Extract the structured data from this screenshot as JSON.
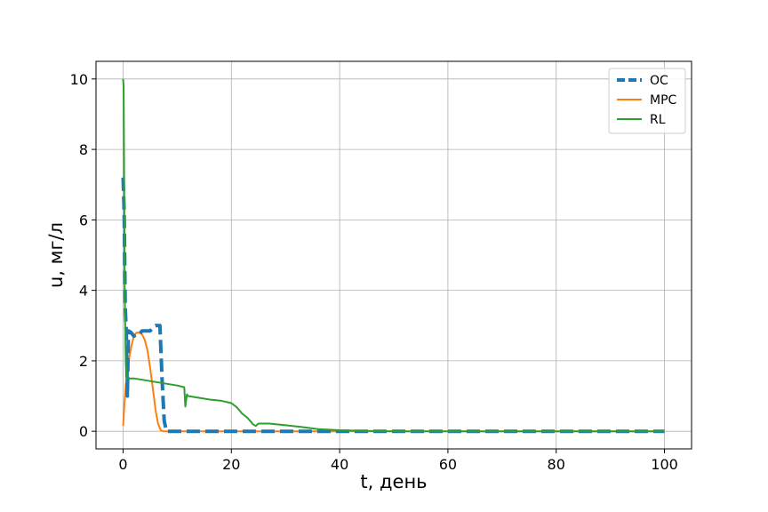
{
  "chart_data": {
    "type": "line",
    "title": "",
    "xlabel": "t, день",
    "ylabel": "u, мг/л",
    "xlim": [
      -5,
      105
    ],
    "ylim": [
      -0.5,
      10.5
    ],
    "xticks": [
      0,
      20,
      40,
      60,
      80,
      100
    ],
    "yticks": [
      0,
      2,
      4,
      6,
      8,
      10
    ],
    "grid": true,
    "legend_position": "top-right",
    "series": [
      {
        "name": "OC",
        "color": "#1f77b4",
        "style": "dashed",
        "x": [
          0,
          0.2,
          0.4,
          0.6,
          0.8,
          1.0,
          1.5,
          2,
          2.5,
          3,
          3.5,
          4,
          5,
          6,
          6.8,
          7.2,
          7.6,
          8,
          100
        ],
        "y": [
          7.2,
          6.2,
          3.5,
          2.8,
          1.0,
          2.85,
          2.8,
          2.7,
          2.75,
          2.75,
          2.85,
          2.85,
          2.85,
          3.0,
          3.0,
          1.5,
          0.3,
          0.0,
          0.0
        ]
      },
      {
        "name": "MPC",
        "color": "#ff7f0e",
        "style": "solid",
        "x": [
          0,
          0.3,
          0.6,
          1,
          1.5,
          2,
          2.5,
          3,
          3.5,
          4,
          4.5,
          5,
          5.5,
          6,
          6.5,
          7,
          7.5,
          100
        ],
        "y": [
          0.15,
          0.9,
          1.5,
          1.95,
          2.4,
          2.7,
          2.8,
          2.8,
          2.75,
          2.6,
          2.3,
          1.8,
          1.2,
          0.6,
          0.2,
          0.02,
          0.0,
          0.0
        ]
      },
      {
        "name": "RL",
        "color": "#2ca02c",
        "style": "solid",
        "x": [
          0,
          0.1,
          0.2,
          0.3,
          0.5,
          0.8,
          1,
          2,
          4,
          6,
          8,
          10,
          11.3,
          11.5,
          11.8,
          12.0,
          14,
          16,
          18,
          20,
          21,
          22,
          23,
          24,
          24.5,
          25,
          27,
          30,
          33,
          36,
          40,
          45,
          50,
          60,
          100
        ],
        "y": [
          10.0,
          9.8,
          7.0,
          4.0,
          1.9,
          1.5,
          1.5,
          1.5,
          1.45,
          1.4,
          1.35,
          1.3,
          1.25,
          0.7,
          1.05,
          1.0,
          0.95,
          0.9,
          0.87,
          0.8,
          0.68,
          0.5,
          0.38,
          0.2,
          0.15,
          0.22,
          0.22,
          0.17,
          0.12,
          0.06,
          0.03,
          0.01,
          0.0,
          0.0,
          0.0
        ]
      }
    ]
  }
}
